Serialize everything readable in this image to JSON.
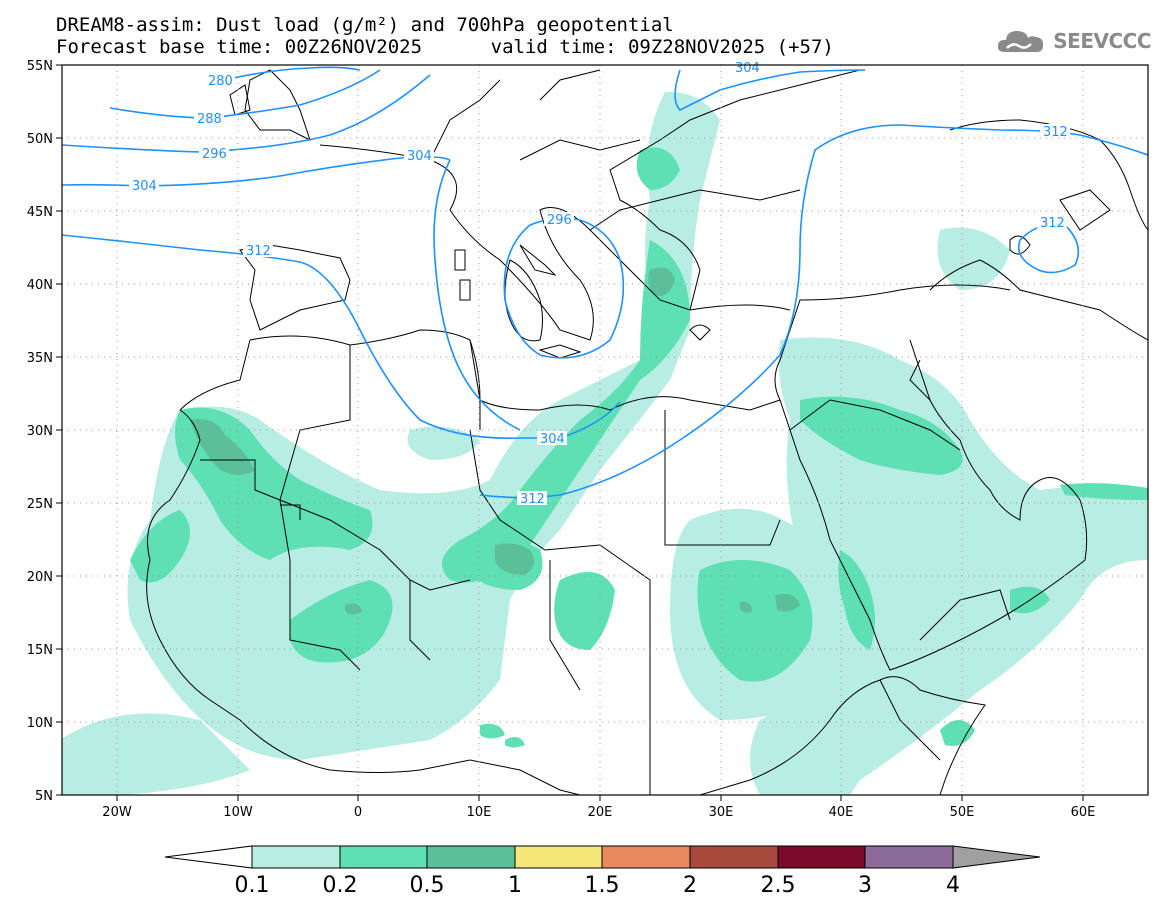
{
  "header": {
    "line1": "DREAM8-assim: Dust load (g/m²) and 700hPa geopotential",
    "line2": "Forecast base time: 00Z26NOV2025      valid time: 09Z28NOV2025 (+57)"
  },
  "logo": {
    "text": "SEEVCCC",
    "icon": "cloud-logo-icon"
  },
  "map": {
    "lat_labels": [
      "55N",
      "50N",
      "45N",
      "40N",
      "35N",
      "30N",
      "25N",
      "20N",
      "15N",
      "10N",
      "5N"
    ],
    "lon_labels": [
      "20W",
      "10W",
      "0",
      "10E",
      "20E",
      "30E",
      "40E",
      "50E",
      "60E"
    ],
    "lat_range": [
      5,
      55
    ],
    "lon_range": [
      -25,
      65
    ],
    "contour_labels": [
      "280",
      "288",
      "296",
      "304",
      "312",
      "304",
      "296",
      "304",
      "312",
      "312",
      "312",
      "304"
    ]
  },
  "colorbar": {
    "levels": [
      "0.1",
      "0.2",
      "0.5",
      "1",
      "1.5",
      "2",
      "2.5",
      "3",
      "4"
    ],
    "colors": [
      "#ffffff",
      "#b8ede4",
      "#5ee0b4",
      "#5bbf9a",
      "#f5e67a",
      "#e88a60",
      "#a84a3e",
      "#7d0a2a",
      "#8b6a9a",
      "#a0a0a0"
    ]
  },
  "dust_colors": {
    "low": "#b8ede4",
    "mid": "#5ee0b4",
    "high": "#5bbf9a"
  },
  "contour_color": "#1e90ff"
}
